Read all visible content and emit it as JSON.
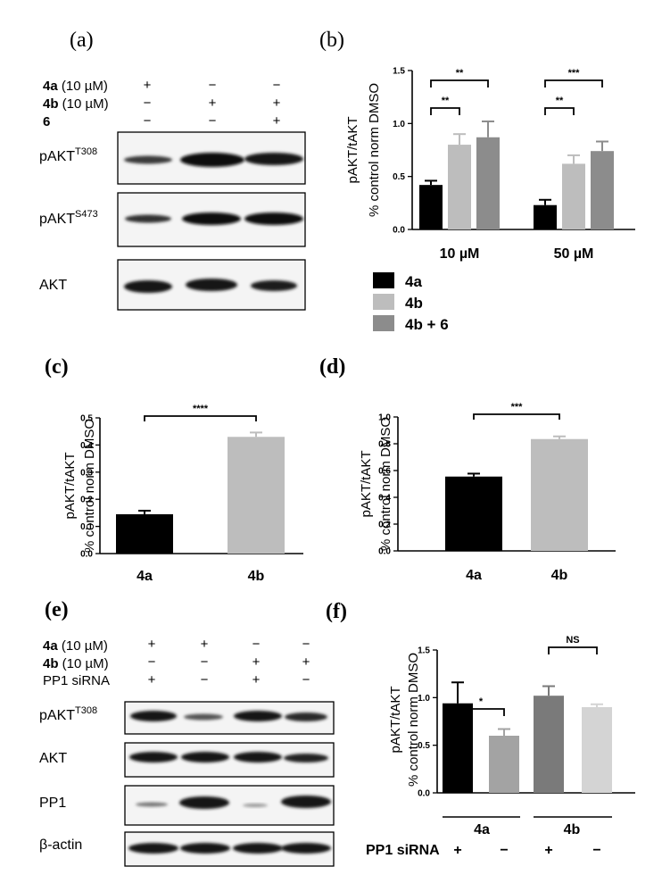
{
  "panels": {
    "a": "(a)",
    "b": "(b)",
    "c": "(c)",
    "d": "(d)",
    "e": "(e)",
    "f": "(f)"
  },
  "blot_a": {
    "conditions": [
      {
        "name_bold": "4a",
        "name_rest": " (10 µM)",
        "marks": [
          "+",
          "−",
          "−"
        ]
      },
      {
        "name_bold": "4b",
        "name_rest": " (10 µM)",
        "marks": [
          "−",
          "+",
          "+"
        ]
      },
      {
        "name_bold": "6",
        "name_rest": "",
        "marks": [
          "−",
          "−",
          "+"
        ]
      }
    ],
    "rows": [
      {
        "main": "pAKT",
        "sup": "T308"
      },
      {
        "main": "pAKT",
        "sup": "S473"
      },
      {
        "main": "AKT",
        "sup": ""
      }
    ]
  },
  "blot_e": {
    "conditions": [
      {
        "name_bold": "4a",
        "name_rest": " (10 µM)",
        "marks": [
          "+",
          "+",
          "−",
          "−"
        ]
      },
      {
        "name_bold": "4b",
        "name_rest": " (10 µM)",
        "marks": [
          "−",
          "−",
          "+",
          "+"
        ]
      },
      {
        "name_bold": "",
        "name_rest": "PP1 siRNA",
        "marks": [
          "+",
          "−",
          "+",
          "−"
        ]
      }
    ],
    "rows": [
      {
        "main": "pAKT",
        "sup": "T308"
      },
      {
        "main": "AKT",
        "sup": ""
      },
      {
        "main": "PP1",
        "sup": ""
      },
      {
        "main": "β-actin",
        "sup": ""
      }
    ]
  },
  "chart_data": [
    {
      "id": "b",
      "type": "bar",
      "ylabel": [
        "pAKT/tAKT",
        "% control norm DMSO"
      ],
      "ylim": [
        0,
        1.5
      ],
      "yticks": [
        "0.0",
        "0.5",
        "1.0",
        "1.5"
      ],
      "categories": [
        "10 µM",
        "50 µM"
      ],
      "series": [
        {
          "name": "4a",
          "color": "#000000",
          "values": [
            0.42,
            0.23
          ],
          "errors": [
            0.04,
            0.05
          ]
        },
        {
          "name": "4b",
          "color": "#bdbdbd",
          "values": [
            0.8,
            0.62
          ],
          "errors": [
            0.1,
            0.08
          ]
        },
        {
          "name": "4b + 6",
          "color": "#8c8c8c",
          "values": [
            0.87,
            0.74
          ],
          "errors": [
            0.15,
            0.09
          ]
        }
      ],
      "significance": [
        {
          "group": 0,
          "from": 0,
          "to": 1,
          "label": "**"
        },
        {
          "group": 0,
          "from": 0,
          "to": 2,
          "label": "**"
        },
        {
          "group": 1,
          "from": 0,
          "to": 1,
          "label": "**"
        },
        {
          "group": 1,
          "from": 0,
          "to": 2,
          "label": "***"
        }
      ],
      "legend": "bottom-left"
    },
    {
      "id": "c",
      "type": "bar",
      "ylabel": [
        "pAKT/tAKT",
        "% control norm DMSO"
      ],
      "ylim": [
        0,
        0.5
      ],
      "yticks": [
        "0.0",
        "0.1",
        "0.2",
        "0.3",
        "0.4",
        "0.5"
      ],
      "categories": [
        "4a",
        "4b"
      ],
      "values": [
        0.145,
        0.43
      ],
      "errors": [
        0.013,
        0.016
      ],
      "colors": [
        "#000000",
        "#bdbdbd"
      ],
      "significance": [
        {
          "from": 0,
          "to": 1,
          "label": "****"
        }
      ]
    },
    {
      "id": "d",
      "type": "bar",
      "ylabel": [
        "pAKT/tAKT",
        "% control norm DMSO"
      ],
      "ylim": [
        0,
        1.0
      ],
      "yticks": [
        "0.0",
        "0.2",
        "0.4",
        "0.6",
        "0.8",
        "1.0"
      ],
      "categories": [
        "4a",
        "4b"
      ],
      "values": [
        0.555,
        0.835
      ],
      "errors": [
        0.022,
        0.02
      ],
      "colors": [
        "#000000",
        "#bdbdbd"
      ],
      "significance": [
        {
          "from": 0,
          "to": 1,
          "label": "***"
        }
      ]
    },
    {
      "id": "f",
      "type": "bar",
      "ylabel": [
        "pAKT/tAKT",
        "% control norm DMSO"
      ],
      "ylim": [
        0,
        1.5
      ],
      "yticks": [
        "0.0",
        "0.5",
        "1.0",
        "1.5"
      ],
      "groups": [
        "4a",
        "4b"
      ],
      "bars": [
        {
          "group": 0,
          "value": 0.94,
          "error": 0.22,
          "color": "#000000",
          "sirna": "+"
        },
        {
          "group": 0,
          "value": 0.6,
          "error": 0.07,
          "color": "#a3a3a3",
          "sirna": "−"
        },
        {
          "group": 1,
          "value": 1.02,
          "error": 0.1,
          "color": "#7a7a7a",
          "sirna": "+"
        },
        {
          "group": 1,
          "value": 0.9,
          "error": 0.03,
          "color": "#d4d4d4",
          "sirna": "−"
        }
      ],
      "significance": [
        {
          "from": 0,
          "to": 1,
          "label": "*"
        },
        {
          "from": 2,
          "to": 3,
          "label": "NS"
        }
      ],
      "row_label": "PP1 siRNA"
    }
  ]
}
